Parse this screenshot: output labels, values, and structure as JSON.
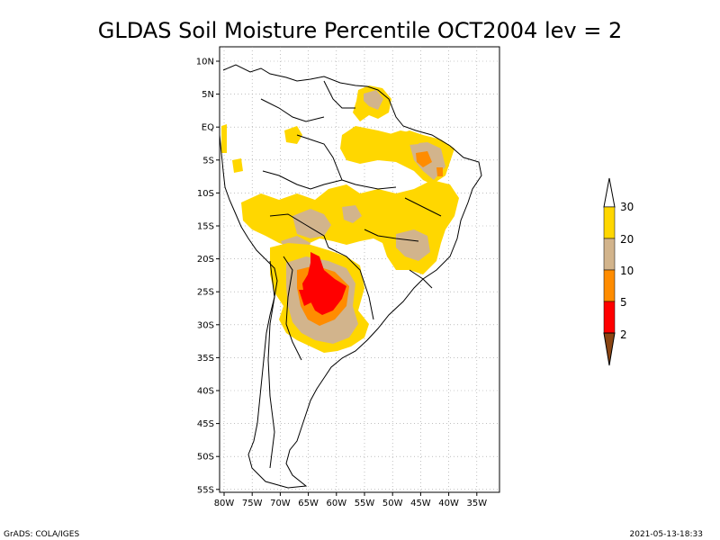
{
  "title": "GLDAS Soil Moisture Percentile OCT2004 lev = 2",
  "footer_left": "GrADS: COLA/IGES",
  "footer_right": "2021-05-13-18:33",
  "lat_labels": [
    "10N",
    "5N",
    "EQ",
    "5S",
    "10S",
    "15S",
    "20S",
    "25S",
    "30S",
    "35S",
    "40S",
    "45S",
    "50S",
    "55S"
  ],
  "lon_labels": [
    "80W",
    "75W",
    "70W",
    "65W",
    "60W",
    "55W",
    "50W",
    "45W",
    "40W",
    "35W"
  ],
  "legend": {
    "levels": [
      "30",
      "20",
      "10",
      "5",
      "2"
    ],
    "colors": {
      "above_30": "#ffffff",
      "c20_30": "#ffd700",
      "c10_20": "#d2b48c",
      "c5_10": "#ff8c00",
      "c2_5": "#ff0000",
      "below_2": "#8b4513"
    }
  },
  "map_colors": {
    "land": "#ffffff",
    "grid": "#808080",
    "coast": "#000000"
  }
}
